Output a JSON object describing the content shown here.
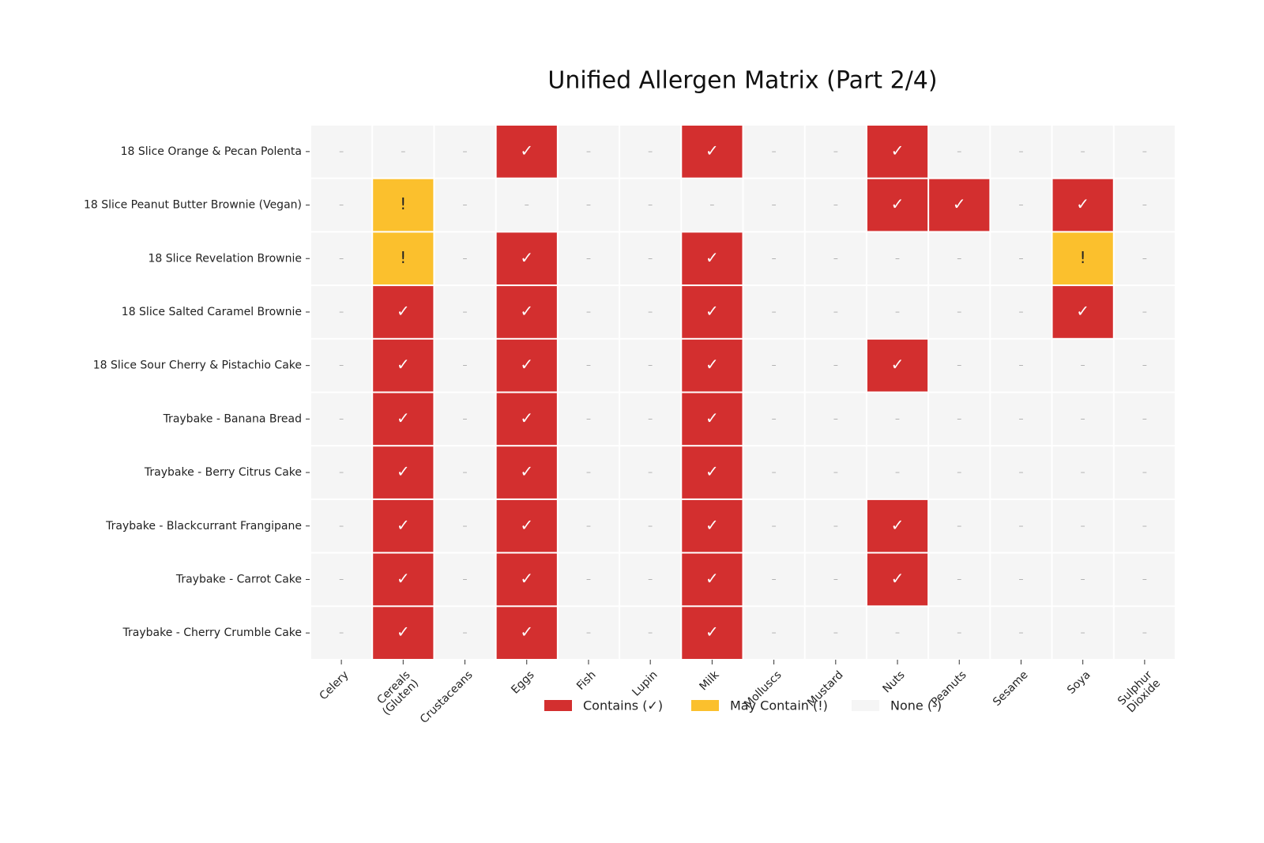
{
  "chart_data": {
    "type": "matrix",
    "title": "Unified Allergen Matrix (Part 2/4)",
    "rows": [
      "18 Slice Orange & Pecan Polenta",
      "18 Slice Peanut Butter Brownie (Vegan)",
      "18 Slice Revelation Brownie",
      "18 Slice Salted Caramel Brownie",
      "18 Slice Sour Cherry & Pistachio Cake",
      "Traybake - Banana Bread",
      "Traybake - Berry Citrus Cake",
      "Traybake - Blackcurrant Frangipane",
      "Traybake - Carrot Cake",
      "Traybake - Cherry Crumble Cake"
    ],
    "columns": [
      "Celery",
      "Cereals (Gluten)",
      "Crustaceans",
      "Eggs",
      "Fish",
      "Lupin",
      "Milk",
      "Molluscs",
      "Mustard",
      "Nuts",
      "Peanuts",
      "Sesame",
      "Soya",
      "Sulphur Dioxide"
    ],
    "values": [
      [
        "–",
        "–",
        "–",
        "✓",
        "–",
        "–",
        "✓",
        "–",
        "–",
        "✓",
        "–",
        "–",
        "–",
        "–"
      ],
      [
        "–",
        "!",
        "–",
        "–",
        "–",
        "–",
        "–",
        "–",
        "–",
        "✓",
        "✓",
        "–",
        "✓",
        "–"
      ],
      [
        "–",
        "!",
        "–",
        "✓",
        "–",
        "–",
        "✓",
        "–",
        "–",
        "–",
        "–",
        "–",
        "!",
        "–"
      ],
      [
        "–",
        "✓",
        "–",
        "✓",
        "–",
        "–",
        "✓",
        "–",
        "–",
        "–",
        "–",
        "–",
        "✓",
        "–"
      ],
      [
        "–",
        "✓",
        "–",
        "✓",
        "–",
        "–",
        "✓",
        "–",
        "–",
        "✓",
        "–",
        "–",
        "–",
        "–"
      ],
      [
        "–",
        "✓",
        "–",
        "✓",
        "–",
        "–",
        "✓",
        "–",
        "–",
        "–",
        "–",
        "–",
        "–",
        "–"
      ],
      [
        "–",
        "✓",
        "–",
        "✓",
        "–",
        "–",
        "✓",
        "–",
        "–",
        "–",
        "–",
        "–",
        "–",
        "–"
      ],
      [
        "–",
        "✓",
        "–",
        "✓",
        "–",
        "–",
        "✓",
        "–",
        "–",
        "✓",
        "–",
        "–",
        "–",
        "–"
      ],
      [
        "–",
        "✓",
        "–",
        "✓",
        "–",
        "–",
        "✓",
        "–",
        "–",
        "✓",
        "–",
        "–",
        "–",
        "–"
      ],
      [
        "–",
        "✓",
        "–",
        "✓",
        "–",
        "–",
        "✓",
        "–",
        "–",
        "–",
        "–",
        "–",
        "–",
        "–"
      ]
    ],
    "series": [
      {
        "name": "Contains (✓)",
        "symbol": "✓",
        "color": "#d32f2f",
        "text_color": "#ffffff"
      },
      {
        "name": "May Contain (!)",
        "symbol": "!",
        "color": "#fbc02d",
        "text_color": "#222222"
      },
      {
        "name": "None (-)",
        "symbol": "–",
        "color": "#f5f5f5",
        "text_color": "#aaaaaa"
      }
    ]
  }
}
